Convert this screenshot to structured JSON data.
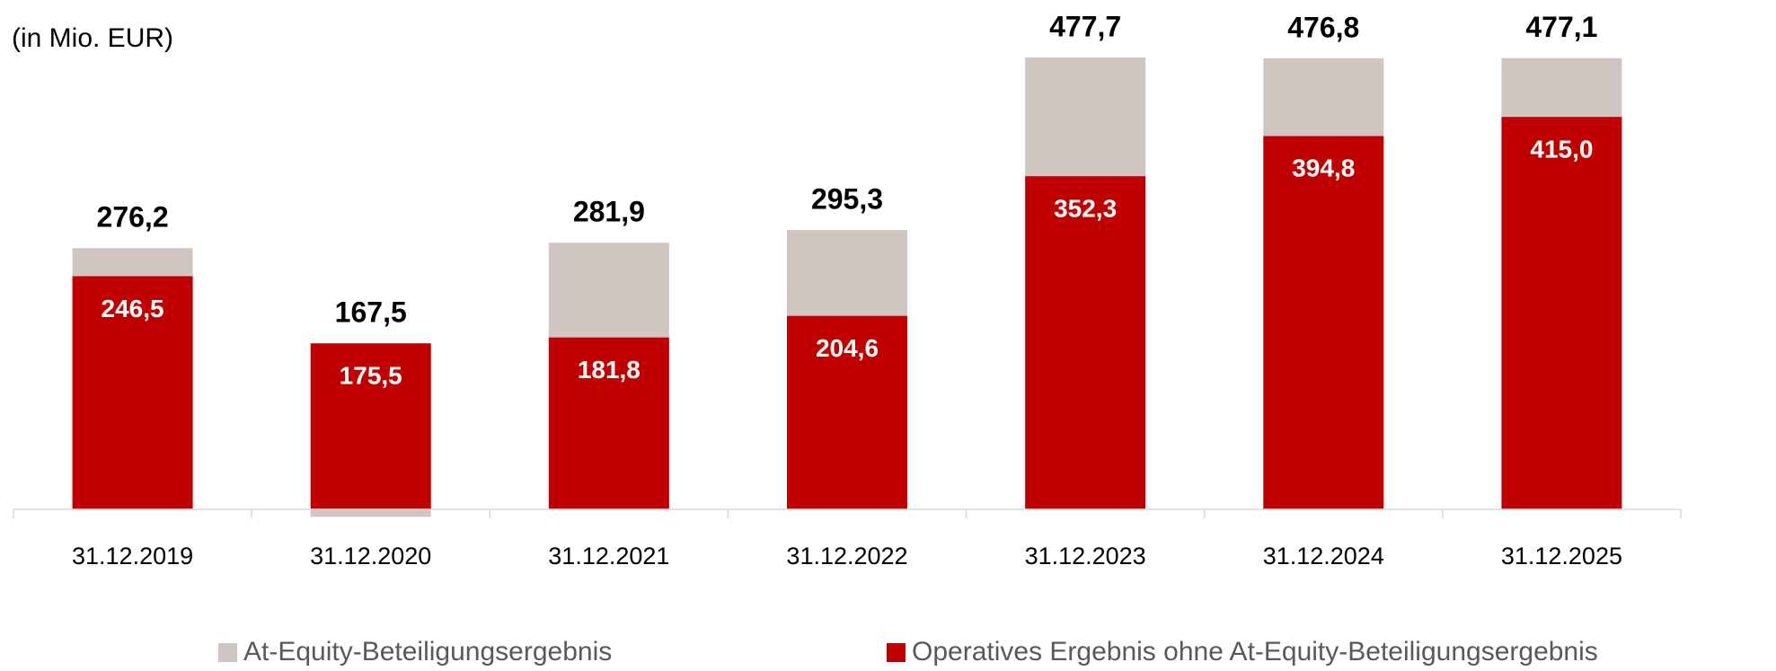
{
  "chart_data": {
    "type": "stacked_bar",
    "unit_label": "(in Mio. EUR)",
    "categories": [
      "31.12.2019",
      "31.12.2020",
      "31.12.2021",
      "31.12.2022",
      "31.12.2023",
      "31.12.2024",
      "31.12.2025"
    ],
    "series": [
      {
        "name": "Operatives Ergebnis ohne At-Equity-Beteiligungsergebnis",
        "color": "#c00000",
        "values": [
          246.5,
          175.5,
          181.8,
          204.6,
          352.3,
          394.8,
          415.0
        ],
        "value_labels": [
          "246,5",
          "175,5",
          "181,8",
          "204,6",
          "352,3",
          "394,8",
          "415,0"
        ]
      },
      {
        "name": "At-Equity-Beteiligungsergebnis",
        "color": "#d0c6c1",
        "values": [
          29.7,
          -8.0,
          100.1,
          90.7,
          125.4,
          82.0,
          62.1
        ]
      }
    ],
    "totals": [
      276.2,
      167.5,
      281.9,
      295.3,
      477.7,
      476.8,
      477.1
    ],
    "total_labels": [
      "276,2",
      "167,5",
      "281,9",
      "295,3",
      "477,7",
      "476,8",
      "477,1"
    ],
    "legend_order": [
      1,
      0
    ],
    "ylim": [
      0,
      530
    ]
  }
}
